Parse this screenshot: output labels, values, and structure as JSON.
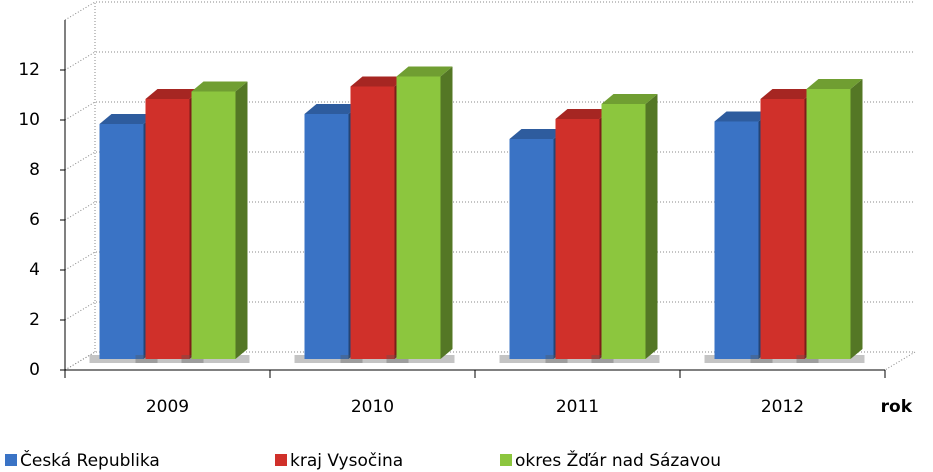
{
  "chart_data": {
    "type": "bar3d",
    "categories": [
      "2009",
      "2010",
      "2011",
      "2012"
    ],
    "x_label": "rok",
    "series": [
      {
        "name": "Česká Republika",
        "color": "#3a73c5",
        "values": [
          9.4,
          9.8,
          8.8,
          9.5
        ]
      },
      {
        "name": "kraj Vysočina",
        "color": "#d0302a",
        "values": [
          10.4,
          10.9,
          9.6,
          10.4
        ]
      },
      {
        "name": "okres Žďár nad Sázavou",
        "color": "#8cc63e",
        "values": [
          10.7,
          11.3,
          10.2,
          10.8
        ]
      }
    ],
    "ylim": [
      0,
      14
    ],
    "yticks": [
      0,
      2,
      4,
      6,
      8,
      10,
      12
    ],
    "grid": true
  }
}
